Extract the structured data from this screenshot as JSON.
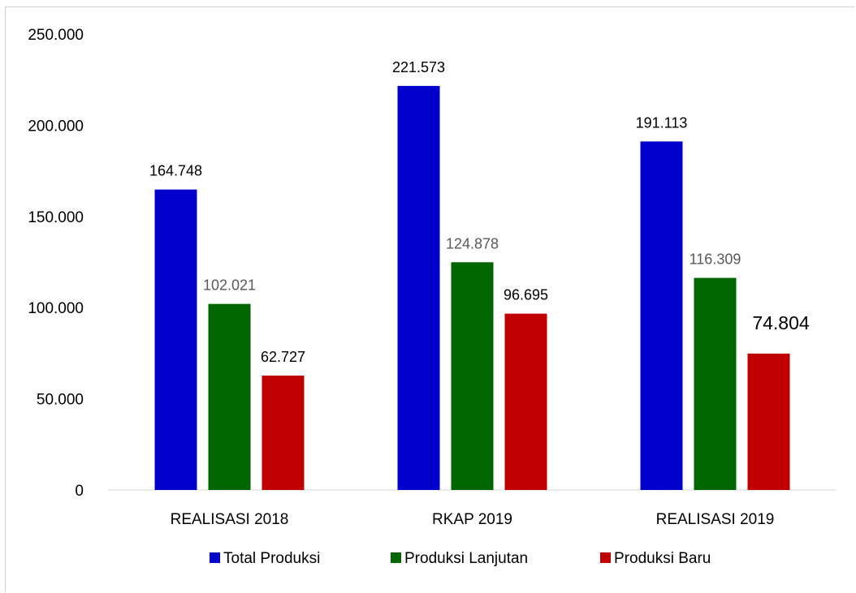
{
  "chart_data": {
    "type": "bar",
    "title": "",
    "xlabel": "",
    "ylabel": "",
    "categories": [
      "REALISASI 2018",
      "RKAP 2019",
      "REALISASI 2019"
    ],
    "ylim": [
      0,
      250000
    ],
    "yticks": [
      0,
      50000,
      100000,
      150000,
      200000,
      250000
    ],
    "ytick_labels": [
      "0",
      "50.000",
      "100.000",
      "150.000",
      "200.000",
      "250.000"
    ],
    "grid": false,
    "legend_position": "bottom",
    "series": [
      {
        "name": "Total Produksi",
        "color": "#0000cc",
        "values": [
          164748,
          221573,
          191113
        ],
        "labels": [
          "164.748",
          "221.573",
          "191.113"
        ]
      },
      {
        "name": "Produksi Lanjutan",
        "color": "#006600",
        "values": [
          102021,
          124878,
          116309
        ],
        "labels": [
          "102.021",
          "124.878",
          "116.309"
        ]
      },
      {
        "name": "Produksi Baru",
        "color": "#c00000",
        "values": [
          62727,
          96695,
          74804
        ],
        "labels": [
          "62.727",
          "96.695",
          "74.804"
        ]
      }
    ]
  }
}
